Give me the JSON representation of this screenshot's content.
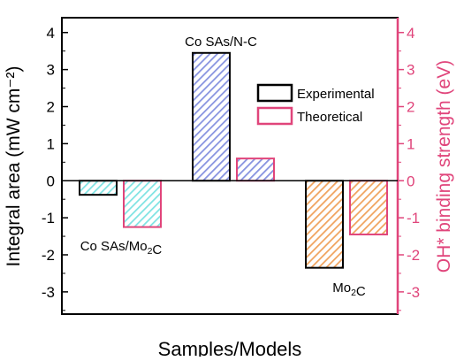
{
  "chart_data": {
    "type": "bar",
    "xlabel": "Samples/Models",
    "ylabel": "Integral area (mW cm⁻²)",
    "ylabel_right": "OH* binding strength (eV)",
    "ylim_left": [
      -3.6,
      4.4
    ],
    "ylim_right": [
      -3.6,
      4.4
    ],
    "left_ticks": [
      4,
      3,
      2,
      1,
      0,
      -1,
      -2,
      -3
    ],
    "right_ticks": [
      4,
      3,
      2,
      1,
      0,
      -1,
      -2,
      -3
    ],
    "groups": [
      {
        "label": "Co SAs/Mo₂C",
        "label_position": "below"
      },
      {
        "label": "Co SAs/N-C",
        "label_position": "above"
      },
      {
        "label": "Mo₂C",
        "label_position": "below"
      }
    ],
    "series": [
      {
        "name": "Experimental",
        "axis": "left",
        "values": [
          -0.38,
          3.45,
          -2.35
        ],
        "edge_color": "#000000",
        "fills": [
          "#7fe3e3",
          "#8793e0",
          "#f0a35e"
        ]
      },
      {
        "name": "Theoretical",
        "axis": "right",
        "values": [
          -1.25,
          0.6,
          -1.45
        ],
        "edge_color": "#e0457b",
        "fills": [
          "#7fe3e3",
          "#8793e0",
          "#f0a35e"
        ]
      }
    ],
    "legend": "top-right",
    "grid": false,
    "colors": {
      "left_axis": "#000000",
      "right_axis": "#e0457b"
    }
  }
}
